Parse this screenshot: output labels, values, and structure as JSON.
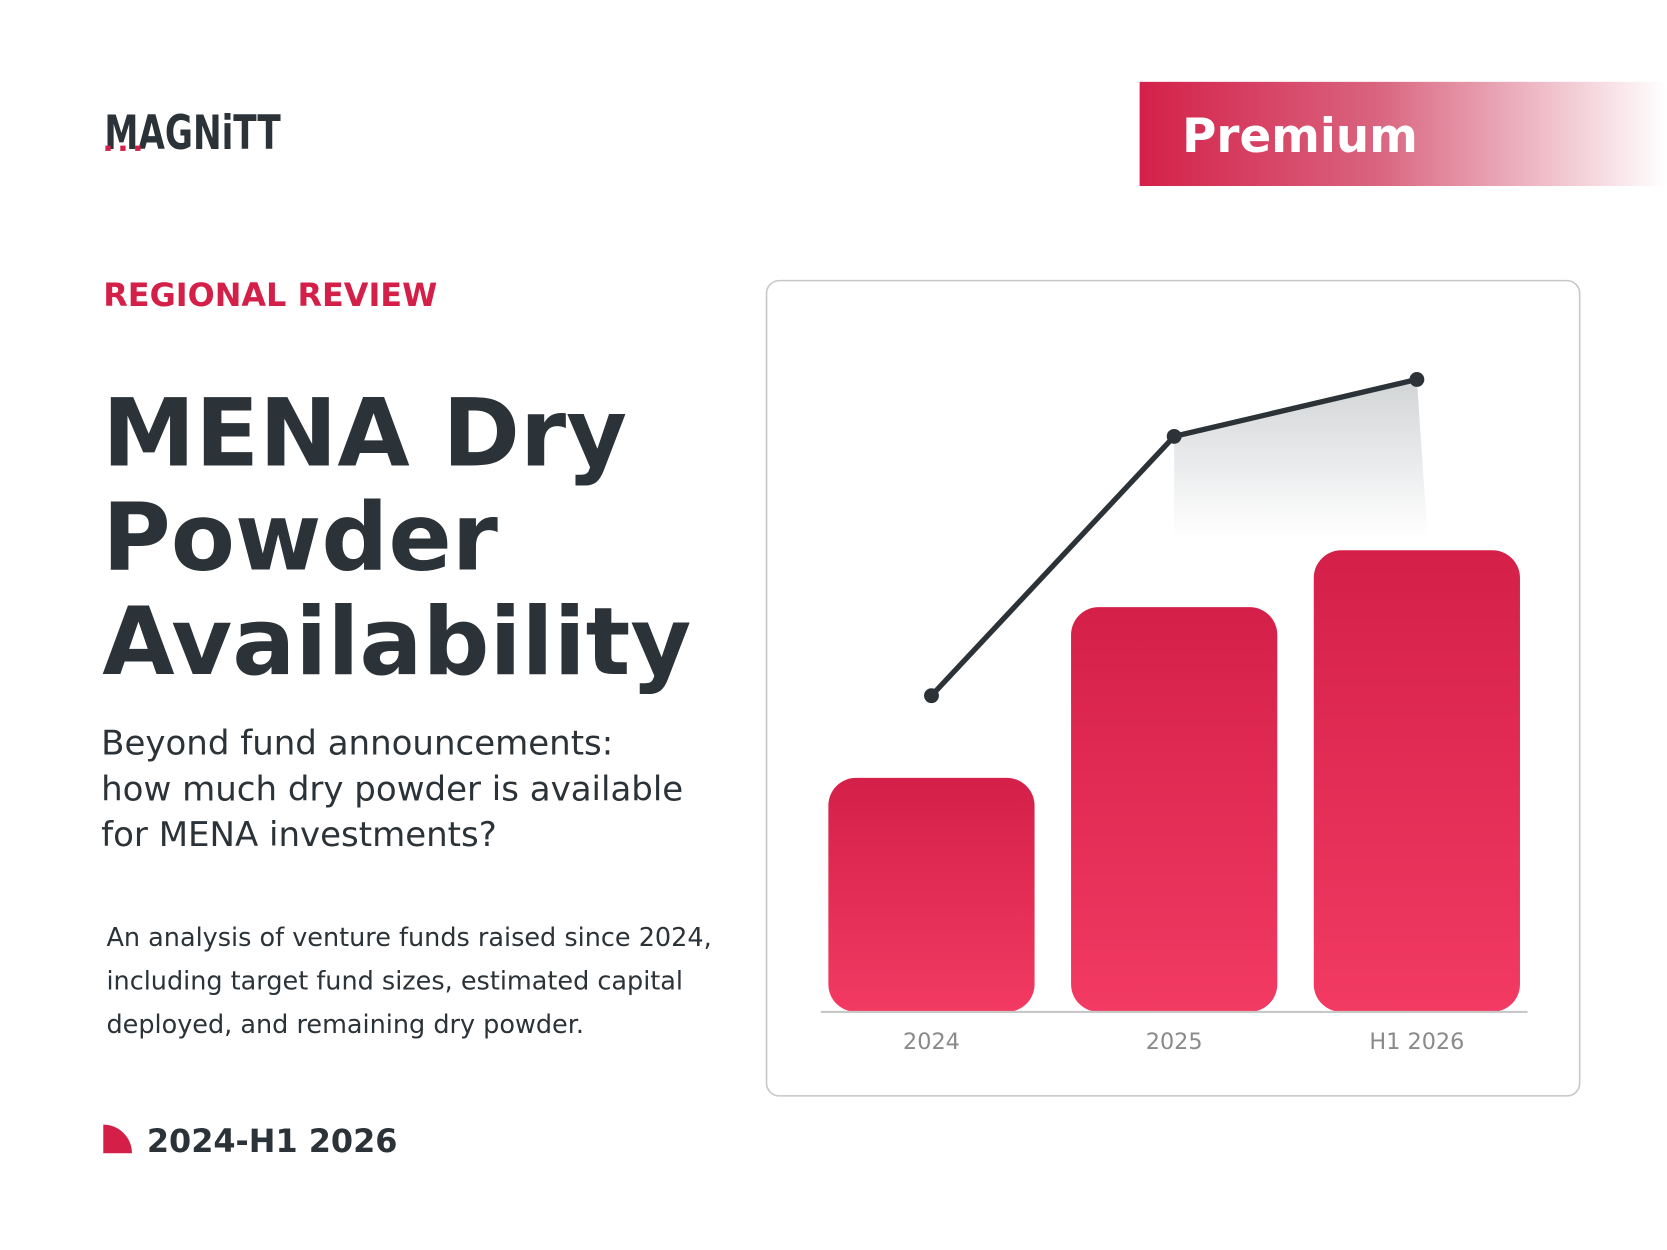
{
  "header": {
    "logo": "MAGNiTT",
    "badge": "Premium"
  },
  "eyebrow": "REGIONAL REVIEW",
  "title": [
    "MENA Dry",
    "Powder",
    "Availability"
  ],
  "subtitle": [
    "Beyond fund announcements:",
    "how much dry powder is available",
    "for MENA investments?"
  ],
  "description": [
    "An analysis of venture funds raised since 2024,",
    "including target fund sizes, estimated capital",
    "deployed, and remaining dry powder."
  ],
  "period": "2024-H1 2026",
  "chart_data": {
    "type": "bar",
    "categories": [
      "2024",
      "2025",
      "H1 2026"
    ],
    "series": [
      {
        "type": "bar",
        "color": "#f23a62",
        "values": [
          37,
          64,
          73
        ]
      },
      {
        "type": "line",
        "color": "#2b3338",
        "values": [
          50,
          91,
          100
        ]
      }
    ],
    "ylim": [
      0,
      100
    ]
  }
}
